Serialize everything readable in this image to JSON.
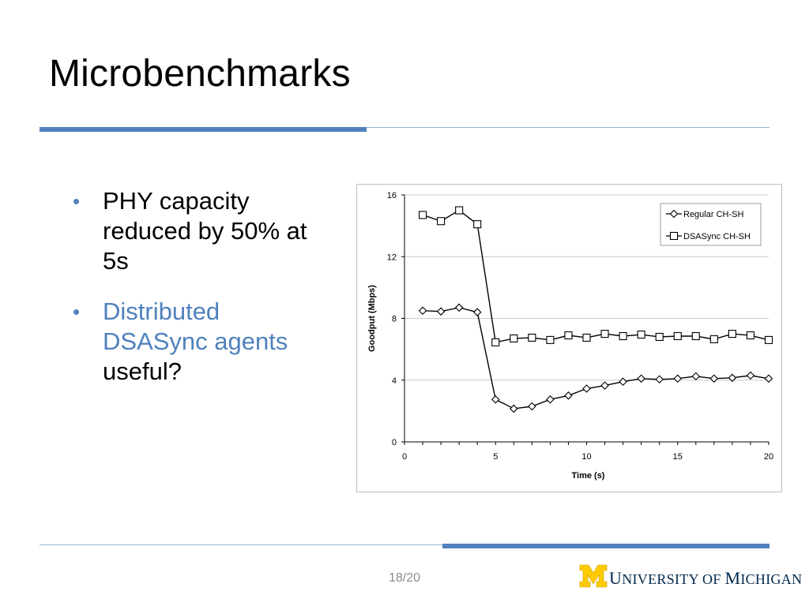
{
  "slide": {
    "title": "Microbenchmarks",
    "bullets": [
      {
        "lines": [
          "PHY capacity",
          "reduced by 50% at",
          "5s"
        ]
      },
      {
        "lines_accent": [
          "Distributed",
          "DSASync agents"
        ],
        "lines": [
          "useful?"
        ]
      }
    ],
    "page_number": "18/20",
    "logo": {
      "initial_u": "U",
      "rest1": "NIVERSITY OF ",
      "initial_m": "M",
      "rest2": "ICHIGAN"
    }
  },
  "colors": {
    "accent": "#4f81bd",
    "maize": "#ffcb05",
    "navy": "#00274c"
  },
  "chart_data": {
    "type": "line",
    "xlabel": "Time (s)",
    "ylabel": "Goodput (Mbps)",
    "xlim": [
      0,
      20
    ],
    "ylim": [
      0,
      16
    ],
    "xticks": [
      0,
      5,
      10,
      15,
      20
    ],
    "yticks": [
      0,
      4,
      8,
      12,
      16
    ],
    "grid": "horizontal",
    "legend_position": "top-right",
    "series": [
      {
        "name": "Regular CH-SH",
        "marker": "diamond",
        "x": [
          1,
          2,
          3,
          4,
          5,
          6,
          7,
          8,
          9,
          10,
          11,
          12,
          13,
          14,
          15,
          16,
          17,
          18,
          19,
          20
        ],
        "values": [
          8.5,
          8.45,
          8.7,
          8.4,
          2.75,
          2.15,
          2.3,
          2.75,
          3.0,
          3.45,
          3.65,
          3.9,
          4.1,
          4.05,
          4.1,
          4.25,
          4.1,
          4.15,
          4.3,
          4.1
        ]
      },
      {
        "name": "DSASync CH-SH",
        "marker": "square",
        "x": [
          1,
          2,
          3,
          4,
          5,
          6,
          7,
          8,
          9,
          10,
          11,
          12,
          13,
          14,
          15,
          16,
          17,
          18,
          19,
          20
        ],
        "values": [
          14.7,
          14.3,
          15.0,
          14.1,
          6.45,
          6.7,
          6.75,
          6.6,
          6.9,
          6.75,
          7.0,
          6.85,
          6.95,
          6.8,
          6.85,
          6.85,
          6.65,
          7.0,
          6.9,
          6.6
        ]
      }
    ]
  }
}
